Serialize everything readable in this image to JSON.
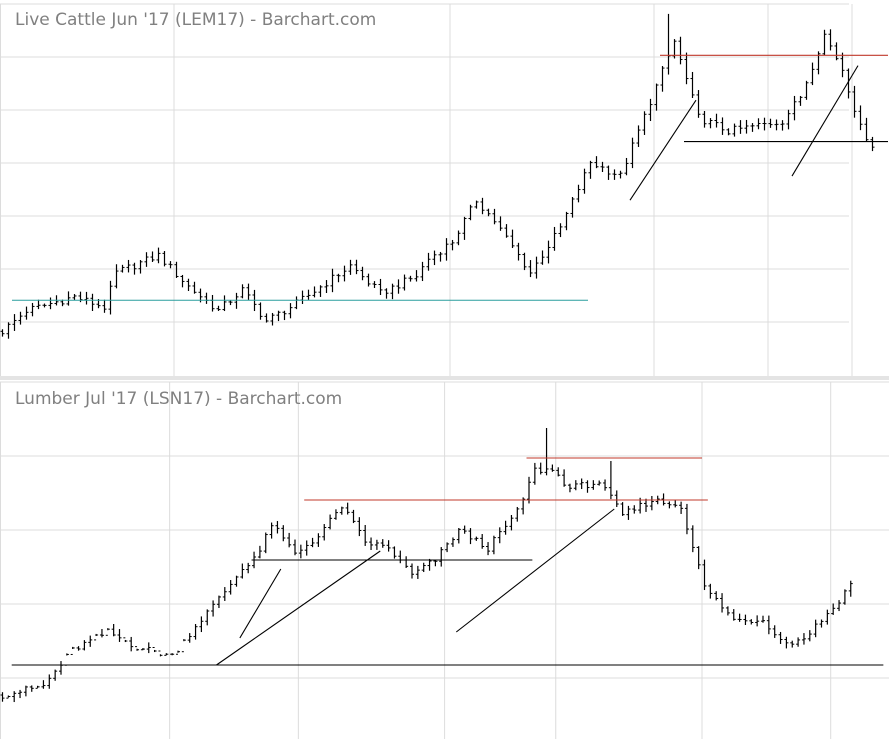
{
  "colors": {
    "background": "#ffffff",
    "grid": "#dcdcdc",
    "bars": "#000000",
    "resistance": "#c0392b",
    "support_teal": "#2a9d9d",
    "trendline": "#000000",
    "title": "#808080",
    "separator": "#e4e4e4"
  },
  "chart_data": [
    {
      "type": "ohlc",
      "title": "Live Cattle Jun '17 (LEM17) - Barchart.com",
      "xlabel": "",
      "ylabel": "",
      "grid": true,
      "legend": "none",
      "x": "trading session index (0-145)",
      "ylim": [
        0,
        100
      ],
      "y_units": "relative price scale (axis not printed)",
      "vertical_gridlines_at": [
        0,
        29,
        75,
        109,
        128,
        142
      ],
      "key_values": {
        "start": 6,
        "base_level": 15,
        "early_peak": 29,
        "mid_peak": 44,
        "pre_breakout": 55,
        "spike_high": 98,
        "resistance": 86,
        "support": 61,
        "end": 60
      },
      "annotations": [
        {
          "type": "horizontal",
          "color": "support_teal",
          "x": [
            2,
            98
          ],
          "y": 15
        },
        {
          "type": "horizontal",
          "color": "resistance",
          "x": [
            110,
            148
          ],
          "y": 86
        },
        {
          "type": "horizontal",
          "color": "trendline",
          "x": [
            114,
            148
          ],
          "y": 61
        },
        {
          "type": "trend",
          "color": "trendline",
          "from": [
            105,
            44
          ],
          "to": [
            116,
            73
          ]
        },
        {
          "type": "trend",
          "color": "trendline",
          "from": [
            132,
            51
          ],
          "to": [
            143,
            83
          ]
        }
      ]
    },
    {
      "type": "ohlc",
      "title": "Lumber Jul '17 (LSN17) - Barchart.com",
      "xlabel": "",
      "ylabel": "",
      "grid": true,
      "legend": "none",
      "x": "trading session index (0-145)",
      "ylim": [
        0,
        100
      ],
      "y_units": "relative price scale (axis not printed)",
      "vertical_gridlines_at": [
        0,
        29,
        51,
        76,
        95,
        120,
        142
      ],
      "key_values": {
        "start": 7,
        "base_level": 17,
        "first_rally_high": 68,
        "plateau": 60,
        "spike_high": 96,
        "second_plateau": 72,
        "trough": 18,
        "end": 38
      },
      "annotations": [
        {
          "type": "horizontal",
          "color": "trendline",
          "x": [
            2,
            151
          ],
          "y": 17
        },
        {
          "type": "horizontal",
          "color": "resistance",
          "x": [
            52,
            121
          ],
          "y": 72
        },
        {
          "type": "horizontal",
          "color": "resistance",
          "x": [
            90,
            120
          ],
          "y": 86
        },
        {
          "type": "horizontal",
          "color": "trendline",
          "x": [
            43,
            91
          ],
          "y": 52
        },
        {
          "type": "trend",
          "color": "trendline",
          "from": [
            41,
            26
          ],
          "to": [
            48,
            49
          ]
        },
        {
          "type": "trend",
          "color": "trendline",
          "from": [
            37,
            17
          ],
          "to": [
            65,
            55
          ]
        },
        {
          "type": "trend",
          "color": "trendline",
          "from": [
            78,
            28
          ],
          "to": [
            105,
            69
          ]
        }
      ]
    }
  ]
}
